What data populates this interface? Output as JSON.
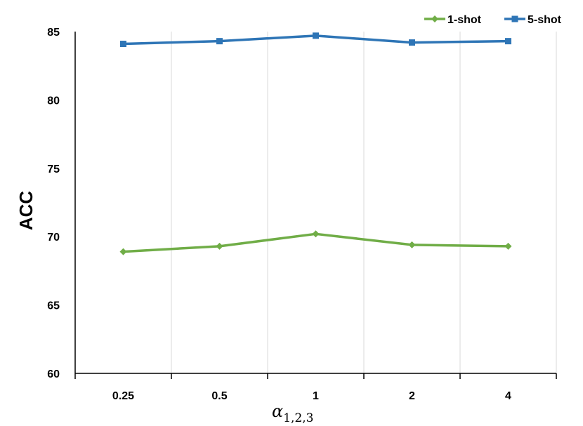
{
  "chart_data": {
    "type": "line",
    "categories": [
      "0.25",
      "0.5",
      "1",
      "2",
      "4"
    ],
    "series": [
      {
        "name": "1-shot",
        "values": [
          68.9,
          69.3,
          70.2,
          69.4,
          69.3
        ],
        "color": "#70ad47",
        "marker": "diamond"
      },
      {
        "name": "5-shot",
        "values": [
          84.1,
          84.3,
          84.7,
          84.2,
          84.3
        ],
        "color": "#2e75b6",
        "marker": "square"
      }
    ],
    "title": "",
    "xlabel_base": "α",
    "xlabel_sub": "1,2,3",
    "ylabel": "ACC",
    "ylim": [
      60,
      85
    ],
    "yticks": [
      "60",
      "65",
      "70",
      "75",
      "80",
      "85"
    ],
    "grid": "vertical",
    "legend_position": "top-right"
  }
}
